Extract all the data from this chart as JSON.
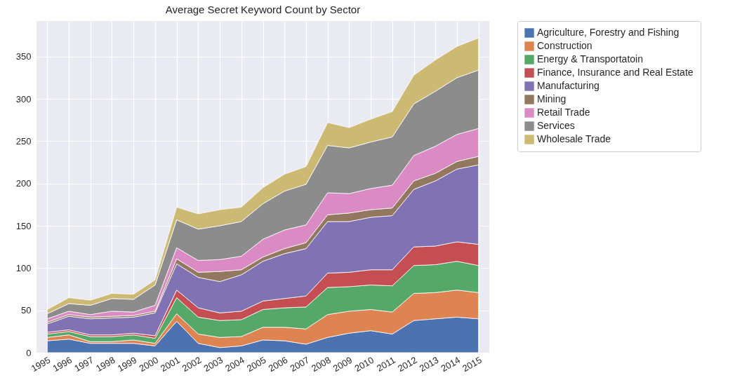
{
  "chart_data": {
    "type": "area",
    "title": "Average Secret Keyword Count by Sector",
    "stacked": true,
    "grid": true,
    "legend": "right",
    "categories": [
      "1995",
      "1996",
      "1997",
      "1998",
      "1999",
      "2000",
      "2001",
      "2002",
      "2003",
      "2004",
      "2005",
      "2006",
      "2007",
      "2008",
      "2009",
      "2010",
      "2011",
      "2012",
      "2013",
      "2014",
      "2015"
    ],
    "ylim": [
      0,
      392
    ],
    "yticks": [
      0,
      50,
      100,
      150,
      200,
      250,
      300,
      350
    ],
    "series": [
      {
        "name": "Agriculture, Forestry and Fishing",
        "color": "#4c72b0",
        "values": [
          14,
          16,
          11,
          11,
          11,
          8,
          37,
          11,
          6,
          8,
          15,
          14,
          10,
          18,
          23,
          26,
          22,
          38,
          40,
          42,
          40
        ]
      },
      {
        "name": "Construction",
        "color": "#dd8452",
        "values": [
          4,
          5,
          2,
          2,
          4,
          3,
          9,
          11,
          12,
          11,
          15,
          16,
          18,
          27,
          26,
          25,
          26,
          32,
          31,
          32,
          31
        ]
      },
      {
        "name": "Energy & Transportatoin",
        "color": "#55a868",
        "values": [
          4,
          4,
          6,
          6,
          6,
          6,
          19,
          20,
          20,
          20,
          21,
          23,
          26,
          32,
          29,
          29,
          31,
          33,
          33,
          34,
          32
        ]
      },
      {
        "name": "Finance, Insurance and Real Estate",
        "color": "#c44e52",
        "values": [
          2,
          2,
          2,
          2,
          2,
          3,
          9,
          11,
          9,
          10,
          10,
          11,
          13,
          17,
          17,
          18,
          19,
          22,
          22,
          23,
          25
        ]
      },
      {
        "name": "Manufacturing",
        "color": "#8172b3",
        "values": [
          10,
          16,
          19,
          20,
          19,
          27,
          31,
          36,
          37,
          43,
          47,
          53,
          56,
          61,
          60,
          62,
          64,
          68,
          77,
          86,
          94
        ]
      },
      {
        "name": "Mining",
        "color": "#937860",
        "values": [
          2,
          2,
          2,
          2,
          2,
          2,
          6,
          6,
          12,
          6,
          5,
          6,
          7,
          8,
          10,
          9,
          9,
          10,
          9,
          9,
          10
        ]
      },
      {
        "name": "Retail Trade",
        "color": "#da8bc3",
        "values": [
          4,
          4,
          3,
          6,
          4,
          7,
          13,
          14,
          14,
          16,
          21,
          22,
          21,
          26,
          23,
          25,
          27,
          30,
          32,
          32,
          33
        ]
      },
      {
        "name": "Services",
        "color": "#8c8c8c",
        "values": [
          6,
          9,
          11,
          15,
          15,
          24,
          33,
          37,
          40,
          41,
          42,
          46,
          48,
          56,
          54,
          55,
          57,
          61,
          65,
          67,
          69
        ]
      },
      {
        "name": "Wholesale Trade",
        "color": "#ccb974",
        "values": [
          5,
          7,
          6,
          6,
          6,
          6,
          15,
          18,
          19,
          17,
          19,
          20,
          21,
          27,
          24,
          27,
          30,
          34,
          37,
          37,
          38
        ]
      }
    ]
  }
}
